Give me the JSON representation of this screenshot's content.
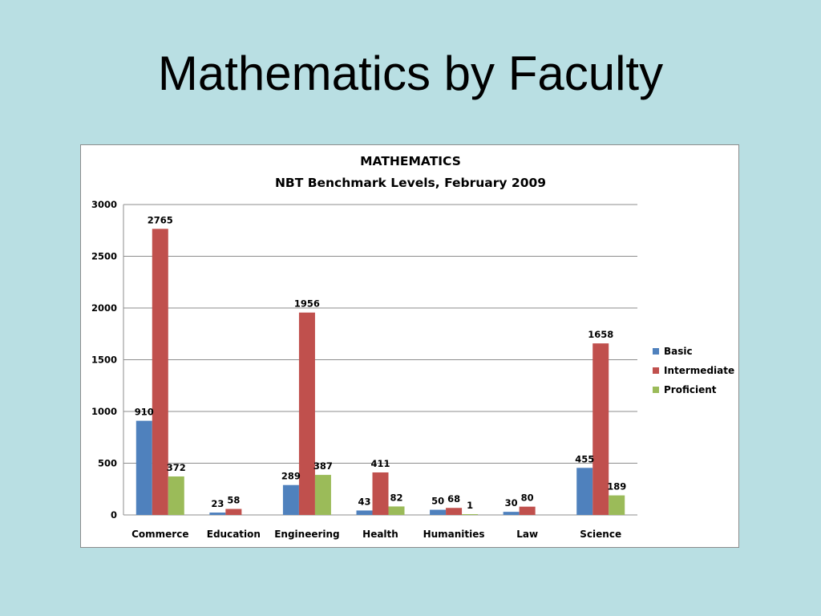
{
  "slide": {
    "title": "Mathematics by Faculty"
  },
  "chart_data": {
    "type": "bar",
    "title": "MATHEMATICS",
    "subtitle": "NBT Benchmark Levels, February 2009",
    "xlabel": "",
    "ylabel": "",
    "categories": [
      "Commerce",
      "Education",
      "Engineering",
      "Health",
      "Humanities",
      "Law",
      "Science"
    ],
    "series": [
      {
        "name": "Basic",
        "color": "#4f81bd",
        "values": [
          910,
          23,
          289,
          43,
          50,
          30,
          455
        ]
      },
      {
        "name": "Intermediate",
        "color": "#c0504d",
        "values": [
          2765,
          58,
          1956,
          411,
          68,
          80,
          1658
        ]
      },
      {
        "name": "Proficient",
        "color": "#9bbb59",
        "values": [
          372,
          null,
          387,
          82,
          1,
          null,
          189
        ]
      }
    ],
    "ylim": [
      0,
      3000
    ],
    "yticks": [
      0,
      500,
      1000,
      1500,
      2000,
      2500,
      3000
    ],
    "grid": true,
    "legend": "right"
  }
}
